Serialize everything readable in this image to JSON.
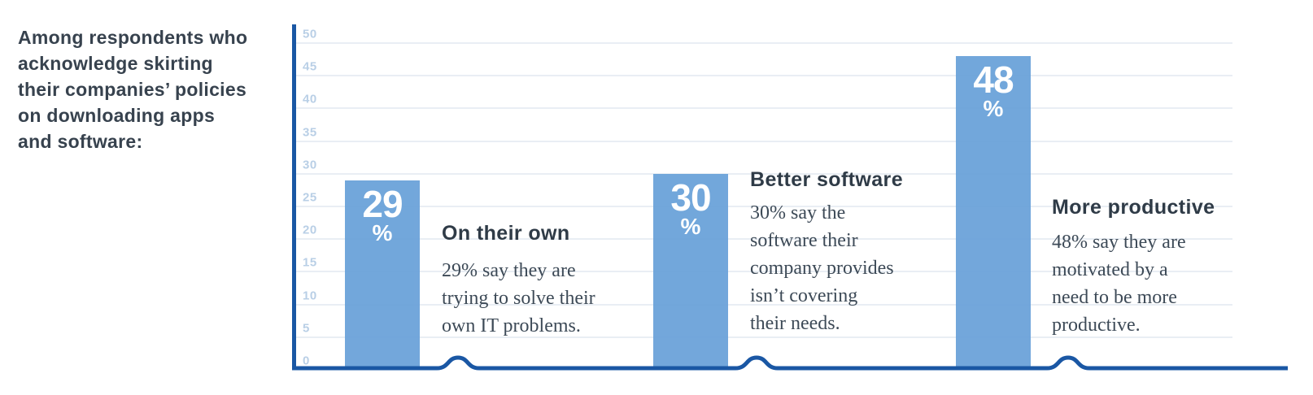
{
  "intro": {
    "text": "Among respondents who\nacknowledge skirting\ntheir companies’ policies\non downloading apps\nand software:"
  },
  "chart_data": {
    "type": "bar",
    "title": "Among respondents who acknowledge skirting their companies’ policies on downloading apps and software",
    "categories": [
      "On their own",
      "Better software",
      "More productive"
    ],
    "values": [
      29,
      30,
      48
    ],
    "unit": "%",
    "xlabel": "",
    "ylabel": "",
    "ylim": [
      0,
      50
    ],
    "ytick_step": 5,
    "ytick_labels": [
      "0",
      "5",
      "10",
      "15",
      "20",
      "25",
      "30",
      "35",
      "40",
      "45",
      "50"
    ],
    "grid": true,
    "legend": false,
    "bar_color": "#6aa2d9",
    "axis_color": "#1a57a4",
    "annotations": [
      "29% say they are trying to solve their own IT problems.",
      "30% say the software their company provides isn’t covering their needs.",
      "48% say they are motivated by a need to be more productive."
    ]
  },
  "groups": [
    {
      "value": "29",
      "unit": "%",
      "heading": "On their own",
      "body": "29% say they are\ntrying to solve their\nown IT problems."
    },
    {
      "value": "30",
      "unit": "%",
      "heading": "Better software",
      "body": "30% say the\nsoftware their\ncompany provides\nisn’t covering\ntheir needs."
    },
    {
      "value": "48",
      "unit": "%",
      "heading": "More productive",
      "body": "48% say they are\nmotivated by a\nneed to be more\nproductive."
    }
  ],
  "colors": {
    "bar": "#6aa2d9",
    "axis": "#1a57a4",
    "gridline": "#e9eef4",
    "tick_label": "#b9cfe6",
    "heading_text": "#2f3b47",
    "body_text": "#3d4a57",
    "intro_text": "#37424e",
    "bar_value_text": "#ffffff"
  }
}
